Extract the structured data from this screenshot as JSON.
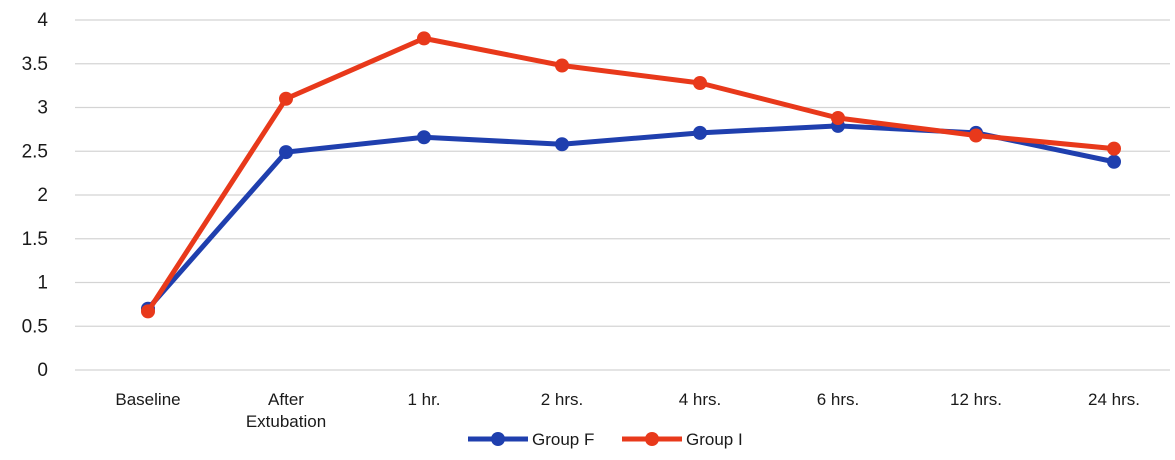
{
  "chart_data": {
    "type": "line",
    "categories": [
      [
        "Baseline"
      ],
      [
        "After",
        "Extubation"
      ],
      [
        "1 hr."
      ],
      [
        "2 hrs."
      ],
      [
        "4 hrs."
      ],
      [
        "6 hrs."
      ],
      [
        "12 hrs."
      ],
      [
        "24 hrs."
      ]
    ],
    "series": [
      {
        "name": "Group F",
        "color": "#1f3fae",
        "values": [
          0.7,
          2.49,
          2.66,
          2.58,
          2.71,
          2.79,
          2.71,
          2.38
        ]
      },
      {
        "name": "Group I",
        "color": "#e8391b",
        "values": [
          0.67,
          3.1,
          3.79,
          3.48,
          3.28,
          2.88,
          2.68,
          2.53
        ]
      }
    ],
    "ylim": [
      0,
      4
    ],
    "yticks": [
      "0",
      "0.5",
      "1",
      "1.5",
      "2",
      "2.5",
      "3",
      "3.5",
      "4"
    ],
    "ytick_values": [
      0,
      0.5,
      1,
      1.5,
      2,
      2.5,
      3,
      3.5,
      4
    ],
    "grid": true,
    "legend_position": "bottom",
    "title": "",
    "xlabel": "",
    "ylabel": ""
  }
}
